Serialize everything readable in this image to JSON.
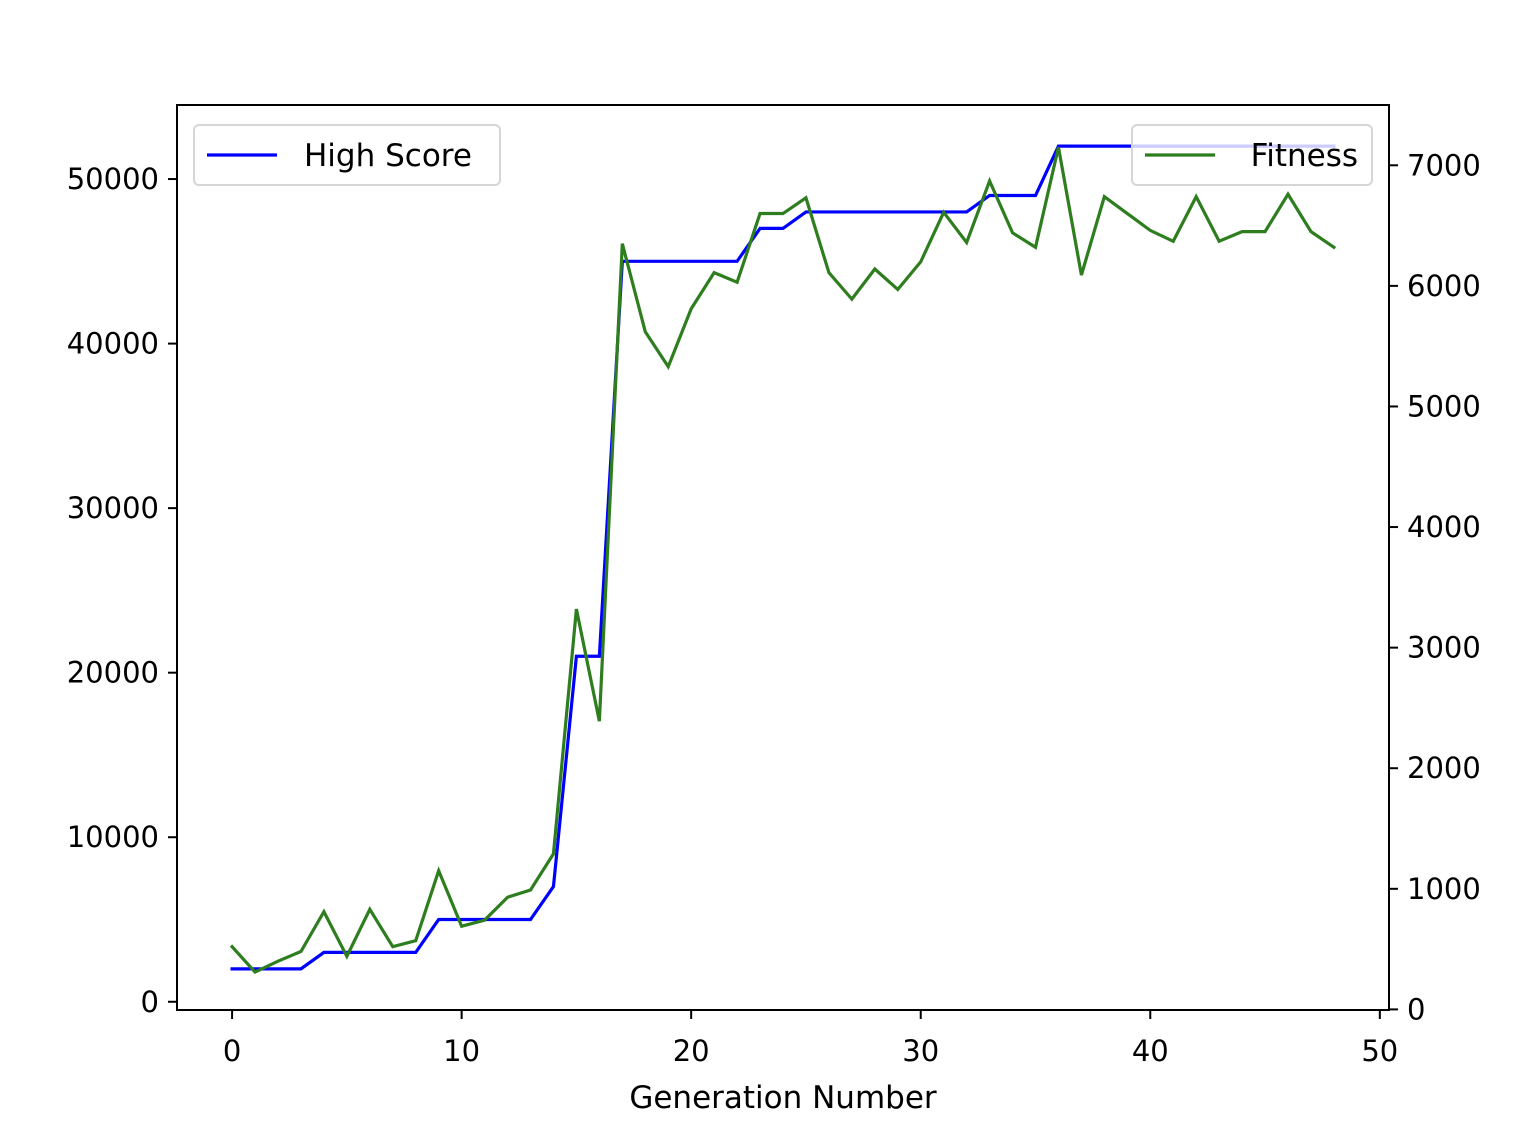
{
  "chart_data": {
    "type": "line",
    "title": "",
    "xlabel": "Generation Number",
    "ylabel_left": "",
    "ylabel_right": "",
    "grid": false,
    "xlim": [
      -2.4,
      50.4
    ],
    "ylim_left": [
      -500,
      54500
    ],
    "ylim_right": [
      -5,
      7500
    ],
    "x_ticks": [
      0,
      10,
      20,
      30,
      40,
      50
    ],
    "y_left_ticks": [
      0,
      10000,
      20000,
      30000,
      40000,
      50000
    ],
    "y_right_ticks": [
      0,
      1000,
      2000,
      3000,
      4000,
      5000,
      6000,
      7000
    ],
    "x": [
      0,
      1,
      2,
      3,
      4,
      5,
      6,
      7,
      8,
      9,
      10,
      11,
      12,
      13,
      14,
      15,
      16,
      17,
      18,
      19,
      20,
      21,
      22,
      23,
      24,
      25,
      26,
      27,
      28,
      29,
      30,
      31,
      32,
      33,
      34,
      35,
      36,
      37,
      38,
      39,
      40,
      41,
      42,
      43,
      44,
      45,
      46,
      47,
      48
    ],
    "series": [
      {
        "name": "High Score",
        "axis": "left",
        "color": "#0000ff",
        "legend_position": "upper-left",
        "values": [
          2000,
          2000,
          2000,
          2000,
          3000,
          3000,
          3000,
          3000,
          3000,
          5000,
          5000,
          5000,
          5000,
          5000,
          7000,
          21000,
          21000,
          45000,
          45000,
          45000,
          45000,
          45000,
          45000,
          47000,
          47000,
          48000,
          48000,
          48000,
          48000,
          48000,
          48000,
          48000,
          48000,
          49000,
          49000,
          49000,
          52000,
          52000,
          52000,
          52000,
          52000,
          52000,
          52000,
          52000,
          52000,
          52000,
          52000,
          52000,
          52000
        ]
      },
      {
        "name": "Fitness",
        "axis": "right",
        "color": "#2e7d1f",
        "legend_position": "upper-right",
        "values": [
          520,
          310,
          400,
          480,
          810,
          440,
          830,
          520,
          570,
          1150,
          690,
          740,
          930,
          990,
          1290,
          3320,
          2390,
          6350,
          5620,
          5330,
          5810,
          6110,
          6030,
          6600,
          6600,
          6730,
          6110,
          5890,
          6140,
          5970,
          6200,
          6610,
          6360,
          6870,
          6440,
          6320,
          7150,
          6090,
          6740,
          6600,
          6460,
          6370,
          6740,
          6370,
          6450,
          6450,
          6760,
          6450,
          6320
        ]
      }
    ]
  }
}
